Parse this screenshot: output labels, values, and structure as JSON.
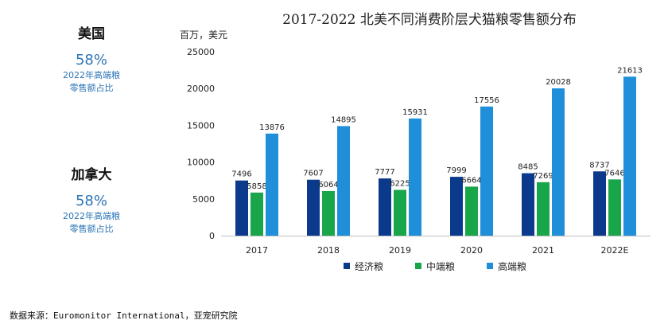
{
  "side_panels": [
    {
      "country": "美国",
      "pct": "58%",
      "desc_line1": "2022年高端粮",
      "desc_line2": "零售额占比"
    },
    {
      "country": "加拿大",
      "pct": "58%",
      "desc_line1": "2022年高端粮",
      "desc_line2": "零售额占比"
    }
  ],
  "source": "数据来源：Euromonitor International，亚宠研究院",
  "chart_data": {
    "type": "bar",
    "title": "2017-2022 北美不同消费阶层犬猫粮零售额分布",
    "ylabel": "百万，美元",
    "xlabel": "",
    "ylim": [
      0,
      25000
    ],
    "yticks": [
      0,
      5000,
      10000,
      15000,
      20000,
      25000
    ],
    "categories": [
      "2017",
      "2018",
      "2019",
      "2020",
      "2021",
      "2022E"
    ],
    "series": [
      {
        "name": "经济粮",
        "color": "#0b3a8c",
        "values": [
          7496,
          7607,
          7777,
          7999,
          8485,
          8737
        ]
      },
      {
        "name": "中端粮",
        "color": "#19a54a",
        "values": [
          5858,
          6064,
          6225,
          6664,
          7269,
          7646
        ]
      },
      {
        "name": "高端粮",
        "color": "#1e8fd8",
        "values": [
          13876,
          14895,
          15931,
          17556,
          20028,
          21613
        ]
      }
    ],
    "legend_position": "bottom",
    "grid": false
  }
}
